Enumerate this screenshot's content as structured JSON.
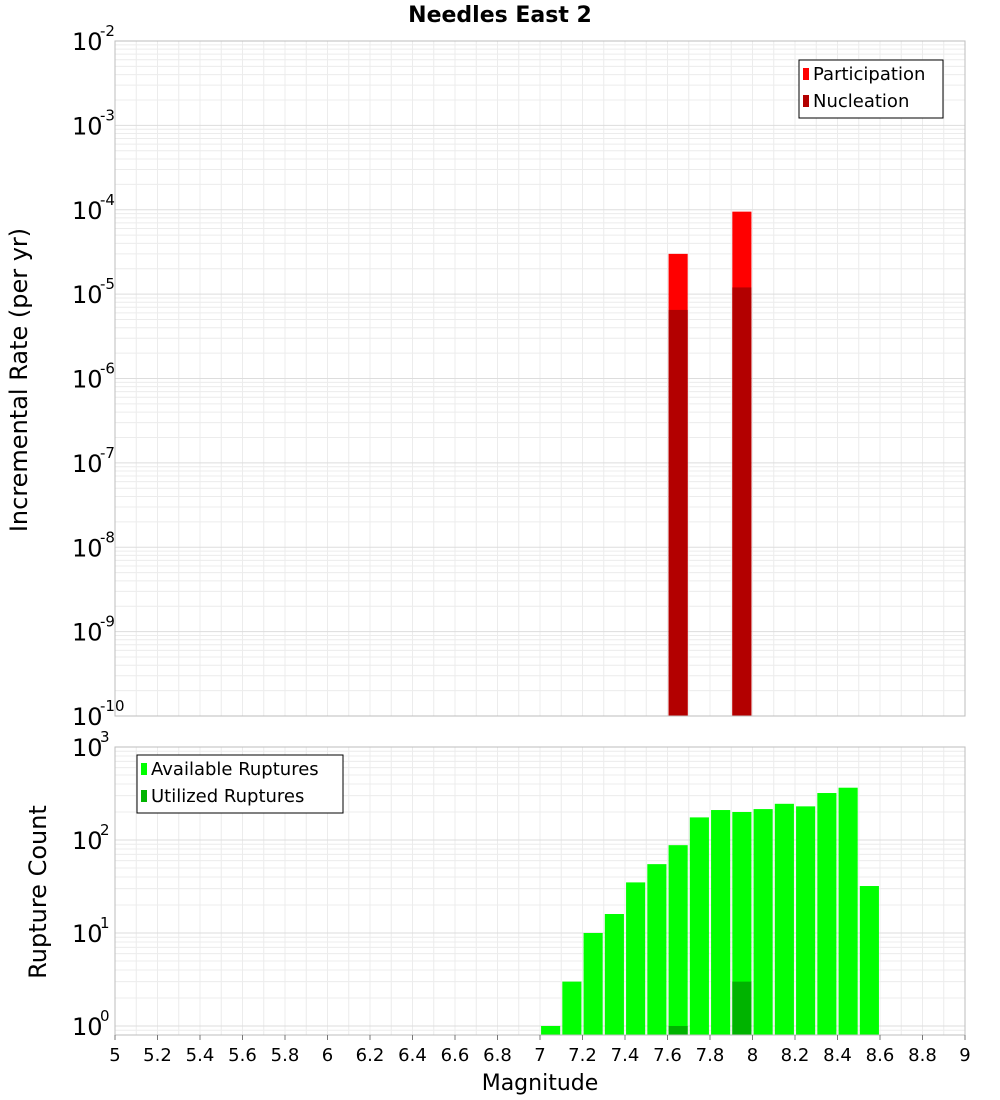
{
  "chart_data": [
    {
      "type": "bar",
      "title": "Needles East 2",
      "xlabel": "",
      "ylabel": "Incremental Rate (per yr)",
      "xlim": [
        5,
        9
      ],
      "ylim": [
        1e-10,
        0.01
      ],
      "yscale": "log",
      "grid": true,
      "legend_position": "top-right",
      "ytick_labels": [
        {
          "base": "10",
          "exp": "-10",
          "value": 1e-10
        },
        {
          "base": "10",
          "exp": "-9",
          "value": 1e-09
        },
        {
          "base": "10",
          "exp": "-8",
          "value": 1e-08
        },
        {
          "base": "10",
          "exp": "-7",
          "value": 1e-07
        },
        {
          "base": "10",
          "exp": "-6",
          "value": 1e-06
        },
        {
          "base": "10",
          "exp": "-5",
          "value": 1e-05
        },
        {
          "base": "10",
          "exp": "-4",
          "value": 0.0001
        },
        {
          "base": "10",
          "exp": "-3",
          "value": 0.001
        },
        {
          "base": "10",
          "exp": "-2",
          "value": 0.01
        }
      ],
      "series": [
        {
          "name": "Participation",
          "color": "#ff0000",
          "x": [
            7.65,
            7.95
          ],
          "values": [
            3e-05,
            9.5e-05
          ]
        },
        {
          "name": "Nucleation",
          "color": "#b30000",
          "x": [
            7.65,
            7.95
          ],
          "values": [
            6.5e-06,
            1.2e-05
          ]
        }
      ]
    },
    {
      "type": "bar",
      "title": "",
      "xlabel": "Magnitude",
      "ylabel": "Rupture Count",
      "xlim": [
        5,
        9
      ],
      "ylim": [
        0.8,
        1000
      ],
      "yscale": "log",
      "grid": true,
      "legend_position": "top-left",
      "ytick_labels": [
        {
          "base": "10",
          "exp": "0",
          "value": 1
        },
        {
          "base": "10",
          "exp": "1",
          "value": 10
        },
        {
          "base": "10",
          "exp": "2",
          "value": 100
        },
        {
          "base": "10",
          "exp": "3",
          "value": 1000
        }
      ],
      "xtick_labels": [
        "5",
        "5.2",
        "5.4",
        "5.6",
        "5.8",
        "6",
        "6.2",
        "6.4",
        "6.6",
        "6.8",
        "7",
        "7.2",
        "7.4",
        "7.6",
        "7.8",
        "8",
        "8.2",
        "8.4",
        "8.6",
        "8.8",
        "9"
      ],
      "series": [
        {
          "name": "Available Ruptures",
          "color": "#00ff00",
          "x": [
            7.05,
            7.15,
            7.25,
            7.35,
            7.45,
            7.55,
            7.65,
            7.75,
            7.85,
            7.95,
            8.05,
            8.15,
            8.25,
            8.35,
            8.45,
            8.55
          ],
          "values": [
            1,
            3,
            10,
            16,
            35,
            55,
            88,
            175,
            210,
            200,
            215,
            245,
            230,
            320,
            365,
            32
          ]
        },
        {
          "name": "Utilized Ruptures",
          "color": "#00b300",
          "x": [
            7.65,
            7.95
          ],
          "values": [
            1,
            3
          ]
        }
      ]
    }
  ]
}
